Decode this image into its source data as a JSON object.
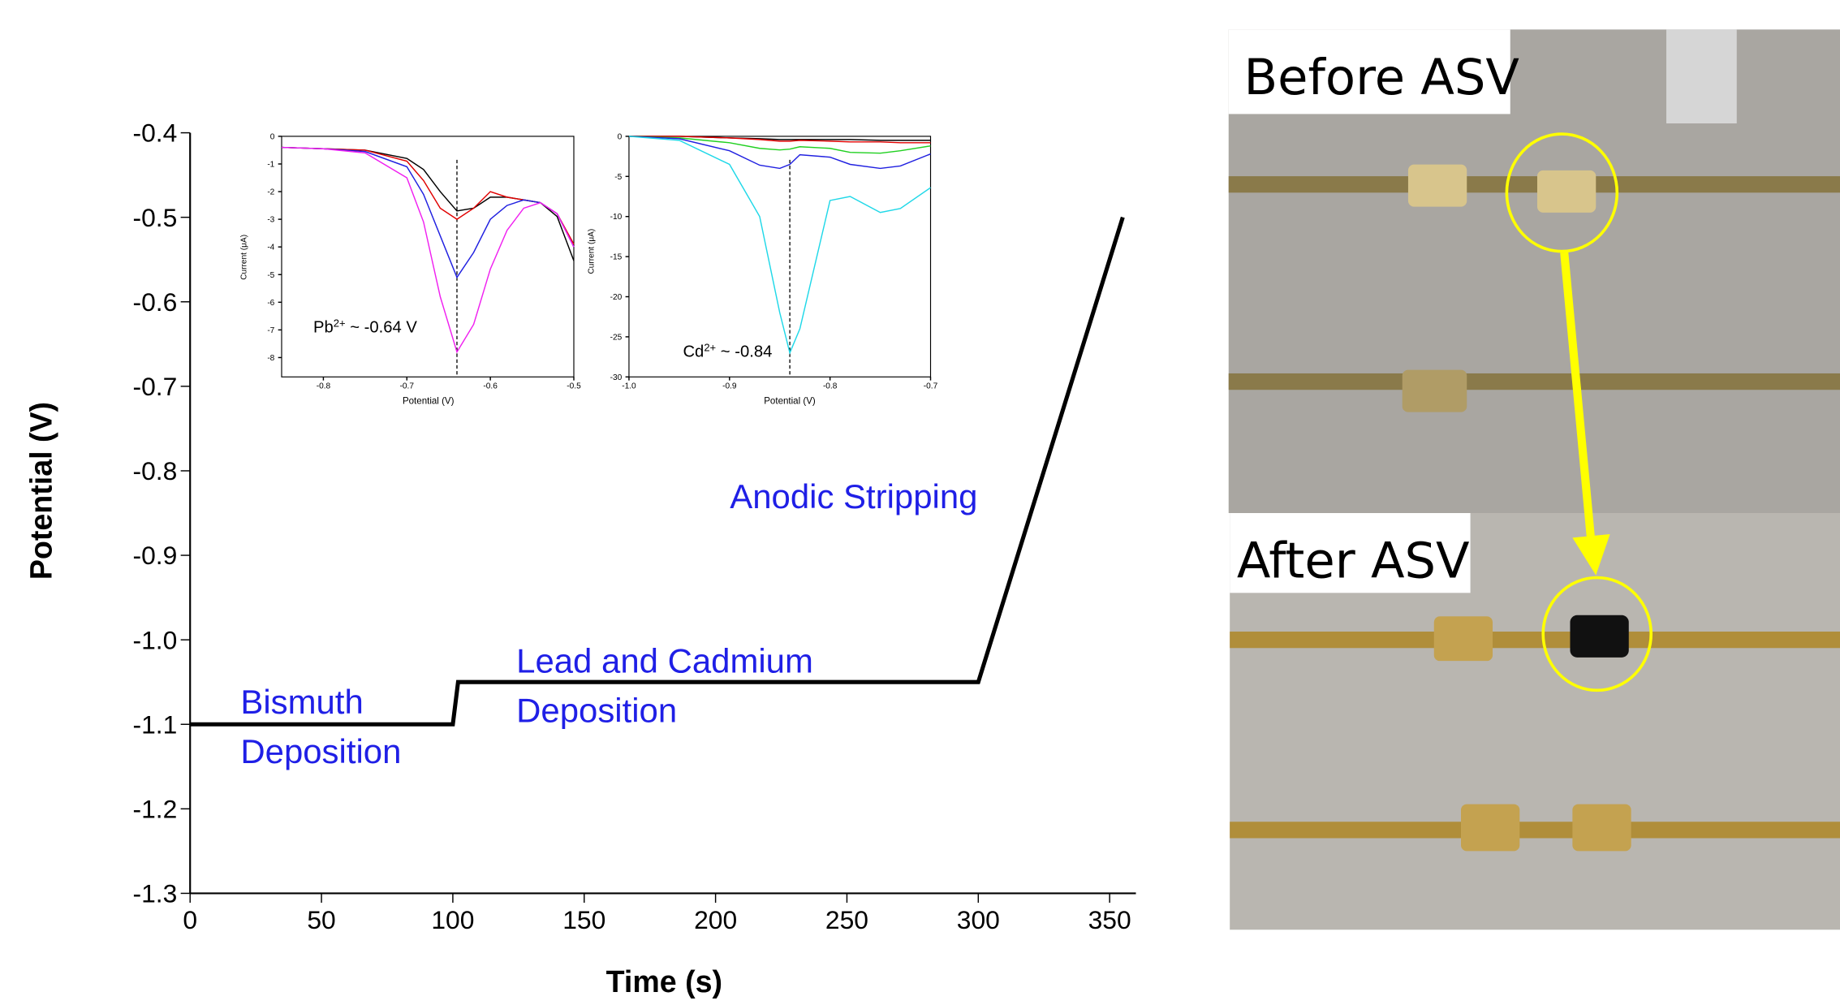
{
  "chart_data": [
    {
      "type": "line",
      "xlabel": "Time (s)",
      "ylabel": "Potential (V)",
      "xlim": [
        0,
        360
      ],
      "ylim": [
        -1.3,
        -0.4
      ],
      "xticks": [
        0,
        50,
        100,
        150,
        200,
        250,
        300,
        350
      ],
      "yticks": [
        -0.4,
        -0.5,
        -0.6,
        -0.7,
        -0.8,
        -0.9,
        {
          "value": -1,
          "label": "-1.0"
        },
        -1.1,
        -1.2,
        -1.3
      ],
      "series": [
        {
          "color": "#000000",
          "x": [
            0,
            100,
            102,
            300,
            355
          ],
          "values": [
            -1.1,
            -1.1,
            -1.05,
            -1.05,
            -0.5
          ]
        }
      ],
      "annotations": [
        "Bismuth",
        "Deposition",
        "Lead and Cadmium",
        "Deposition",
        "Anodic Stripping"
      ],
      "annotation_color": "#1f1fe6"
    },
    {
      "type": "line",
      "xlabel": "Potential (V)",
      "ylabel": "Current (μA)",
      "xlim": [
        -0.85,
        -0.5
      ],
      "ylim": [
        -8.7,
        0
      ],
      "xticks": [
        -0.8,
        -0.7,
        -0.6,
        -0.5
      ],
      "yticks": [
        0,
        -1,
        -2,
        -3,
        -4,
        -5,
        -6,
        -7,
        -8
      ],
      "vline": -0.64,
      "annotation": [
        "Pb",
        "2+",
        " ~ -0.64 V"
      ],
      "x": [
        -0.85,
        -0.8,
        -0.75,
        -0.7,
        -0.68,
        -0.66,
        -0.64,
        -0.62,
        -0.6,
        -0.58,
        -0.56,
        -0.54,
        -0.52,
        -0.5
      ],
      "series": [
        {
          "color": "#000000",
          "values": [
            -0.4,
            -0.45,
            -0.5,
            -0.8,
            -1.2,
            -2.0,
            -2.7,
            -2.6,
            -2.2,
            -2.2,
            -2.3,
            -2.4,
            -2.9,
            -4.5
          ]
        },
        {
          "color": "#e00000",
          "values": [
            -0.4,
            -0.45,
            -0.5,
            -0.9,
            -1.6,
            -2.6,
            -3.0,
            -2.6,
            -2.0,
            -2.2,
            -2.3,
            -2.4,
            -2.8,
            -3.9
          ]
        },
        {
          "color": "#2020e0",
          "values": [
            -0.4,
            -0.45,
            -0.55,
            -1.1,
            -2.1,
            -3.6,
            -5.1,
            -4.2,
            -3.0,
            -2.5,
            -2.3,
            -2.4,
            -2.8,
            -4.0
          ]
        },
        {
          "color": "#f020f0",
          "values": [
            -0.4,
            -0.45,
            -0.6,
            -1.5,
            -3.1,
            -5.8,
            -7.8,
            -6.8,
            -4.8,
            -3.4,
            -2.6,
            -2.4,
            -2.8,
            -4.0
          ]
        }
      ]
    },
    {
      "type": "line",
      "xlabel": "Potential (V)",
      "ylabel": "Current (μA)",
      "xlim": [
        -1,
        -0.7
      ],
      "ylim": [
        -30,
        0
      ],
      "xticks": [
        {
          "value": -1,
          "label": "-1.0"
        },
        -0.9,
        -0.8,
        -0.7
      ],
      "yticks": [
        0,
        -5,
        -10,
        -15,
        -20,
        -25,
        -30
      ],
      "vline": -0.84,
      "annotation": [
        "Cd",
        "2+",
        " ~ -0.84"
      ],
      "x": [
        -1,
        -0.95,
        -0.9,
        -0.87,
        -0.85,
        -0.84,
        -0.83,
        -0.8,
        -0.78,
        -0.75,
        -0.73,
        -0.7
      ],
      "series": [
        {
          "color": "#000000",
          "values": [
            0,
            0,
            -0.2,
            -0.3,
            -0.4,
            -0.4,
            -0.4,
            -0.4,
            -0.4,
            -0.5,
            -0.5,
            -0.5
          ]
        },
        {
          "color": "#e00000",
          "values": [
            0,
            0,
            -0.2,
            -0.4,
            -0.6,
            -0.6,
            -0.5,
            -0.6,
            -0.7,
            -0.7,
            -0.8,
            -0.8
          ]
        },
        {
          "color": "#20d020",
          "values": [
            0,
            -0.2,
            -0.8,
            -1.5,
            -1.7,
            -1.6,
            -1.3,
            -1.5,
            -2.0,
            -2.1,
            -1.8,
            -1.2
          ]
        },
        {
          "color": "#2020e0",
          "values": [
            0,
            -0.3,
            -1.8,
            -3.6,
            -4.0,
            -3.5,
            -2.3,
            -2.6,
            -3.5,
            -4.0,
            -3.7,
            -2.2
          ]
        },
        {
          "color": "#20d8e8",
          "values": [
            0,
            -0.5,
            -3.5,
            -10,
            -22,
            -27,
            -24,
            -8,
            -7.5,
            -9.5,
            -9,
            -6.4
          ]
        }
      ]
    }
  ],
  "photo_panel": {
    "before_label": "Before ASV",
    "after_label": "After ASV"
  }
}
